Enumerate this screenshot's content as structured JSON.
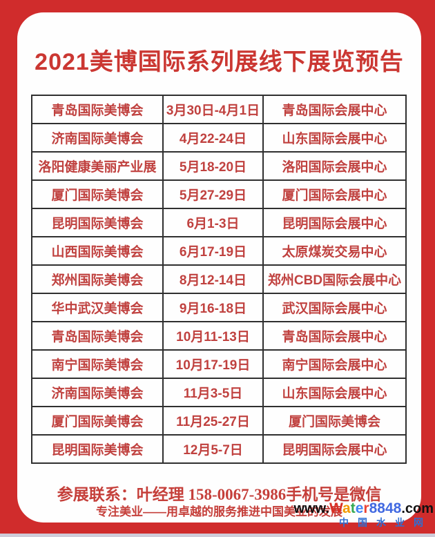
{
  "title": "2021美博国际系列展线下展览预告",
  "schedule": {
    "rows": [
      {
        "name": "青岛国际美博会",
        "date": "3月30日-4月1日",
        "venue": "青岛国际会展中心"
      },
      {
        "name": "济南国际美博会",
        "date": "4月22-24日",
        "venue": "山东国际会展中心"
      },
      {
        "name": "洛阳健康美丽产业展",
        "date": "5月18-20日",
        "venue": "洛阳国际会展中心"
      },
      {
        "name": "厦门国际美博会",
        "date": "5月27-29日",
        "venue": "厦门国际会展中心"
      },
      {
        "name": "昆明国际美博会",
        "date": "6月1-3日",
        "venue": "昆明国际会展中心"
      },
      {
        "name": "山西国际美博会",
        "date": "6月17-19日",
        "venue": "太原煤炭交易中心"
      },
      {
        "name": "郑州国际美博会",
        "date": "8月12-14日",
        "venue": "郑州CBD国际会展中心"
      },
      {
        "name": "华中武汉美博会",
        "date": "9月16-18日",
        "venue": "武汉国际会展中心"
      },
      {
        "name": "青岛国际美博会",
        "date": "10月11-13日",
        "venue": "青岛国际会展中心"
      },
      {
        "name": "南宁国际美博会",
        "date": "10月17-19日",
        "venue": "南宁国际会展中心"
      },
      {
        "name": "济南国际美博会",
        "date": "11月3-5日",
        "venue": "山东国际会展中心"
      },
      {
        "name": "厦门国际美博会",
        "date": "11月25-27日",
        "venue": "厦门国际美博会"
      },
      {
        "name": "昆明国际美博会",
        "date": "12月5-7日",
        "venue": "昆明国际会展中心"
      }
    ]
  },
  "footer": {
    "contact": "参展联系：叶经理  158-0067-3986手机号是微信",
    "slogan": "专注美业——用卓越的服务推进中国美业的发展"
  },
  "watermark": {
    "prefix": "www.",
    "letters": [
      {
        "ch": "W",
        "color": "#d93025"
      },
      {
        "ch": "a",
        "color": "#f29900"
      },
      {
        "ch": "t",
        "color": "#34a853"
      },
      {
        "ch": "e",
        "color": "#4285f4"
      },
      {
        "ch": "r",
        "color": "#ea4335"
      },
      {
        "ch": "8",
        "color": "#4169e1"
      },
      {
        "ch": "8",
        "color": "#4169e1"
      },
      {
        "ch": "4",
        "color": "#4169e1"
      },
      {
        "ch": "8",
        "color": "#4169e1"
      }
    ],
    "suffix": ".com",
    "cn": "中国水业网"
  },
  "colors": {
    "background_red": "#d02c2c",
    "card_white": "#fefefe",
    "title_red": "#cb3732",
    "cell_text_red": "#c0413f",
    "table_border": "#2f2f2f",
    "contact_red": "#c53f3a",
    "watermark_blue": "#2e6fd4",
    "bottom_strip": "#cfccd9"
  }
}
